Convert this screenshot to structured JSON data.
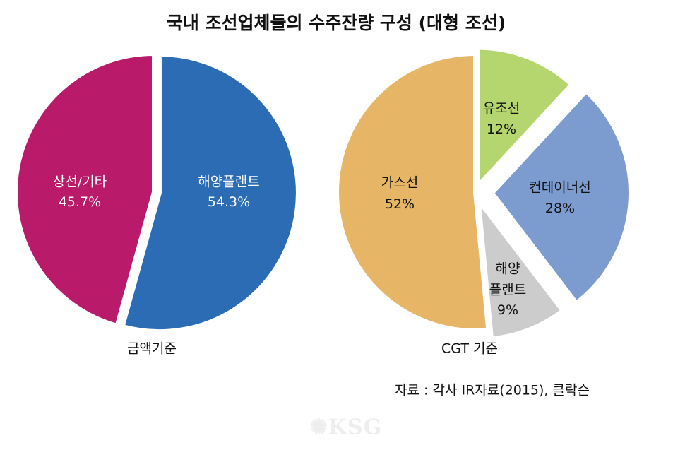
{
  "title": "국내 조선업체들의 수주잔량 구성 (대형 조선)",
  "chart_data": [
    {
      "type": "pie",
      "caption": "금액기준",
      "slices": [
        {
          "name": "해양플랜트",
          "value": 54.3,
          "label": "54.3%",
          "color": "#2B6CB5"
        },
        {
          "name": "상선/기타",
          "value": 45.7,
          "label": "45.7%",
          "color": "#BA1A6A"
        }
      ]
    },
    {
      "type": "pie",
      "caption": "CGT 기준",
      "slices": [
        {
          "name": "유조선",
          "value": 12,
          "label": "12%",
          "color": "#B5D56F"
        },
        {
          "name": "컨테이너선",
          "value": 28,
          "label": "28%",
          "color": "#7C9CD0"
        },
        {
          "name": "해양 플랜트",
          "name_lines": [
            "해양",
            "플랜트"
          ],
          "value": 9,
          "label": "9%",
          "color": "#CCCCCC"
        },
        {
          "name": "가스선",
          "value": 52,
          "label": "52%",
          "color": "#E6B565"
        }
      ]
    }
  ],
  "source": "자료 : 각사 IR자료(2015), 클락슨",
  "watermark": "KSG"
}
